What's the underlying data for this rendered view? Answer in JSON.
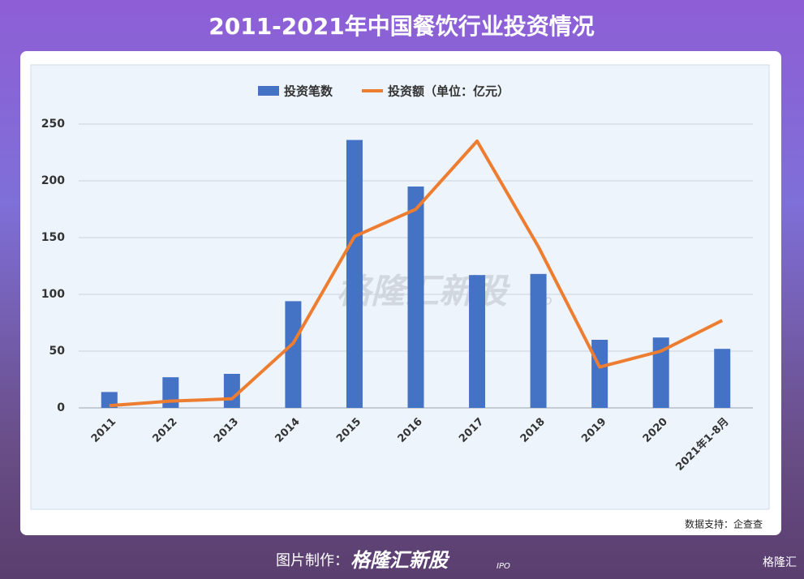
{
  "chart_data": {
    "type": "bar_line",
    "title": "2011-2021年中国餐饮行业投资情况",
    "categories": [
      "2011",
      "2012",
      "2013",
      "2014",
      "2015",
      "2016",
      "2017",
      "2018",
      "2019",
      "2020",
      "2021年1-8月"
    ],
    "series": [
      {
        "name": "投资笔数",
        "type": "bar",
        "color": "#4472c4",
        "values": [
          14,
          27,
          30,
          94,
          236,
          195,
          117,
          118,
          60,
          62,
          52
        ]
      },
      {
        "name": "投资额（单位：亿元）",
        "type": "line",
        "color": "#ed7d31",
        "values": [
          2,
          6,
          8,
          57,
          151,
          175,
          235,
          142,
          36,
          50,
          77
        ]
      }
    ],
    "ylim": [
      0,
      250
    ],
    "yticks": [
      0,
      50,
      100,
      150,
      200,
      250
    ],
    "grid": true,
    "source": "数据支持：企查查"
  },
  "watermark": "格隆汇新股",
  "watermark_tag": "IPO",
  "footer": {
    "label": "图片制作：",
    "brand": "格隆汇新股",
    "tag": "IPO",
    "corner_logo": "格隆汇"
  }
}
